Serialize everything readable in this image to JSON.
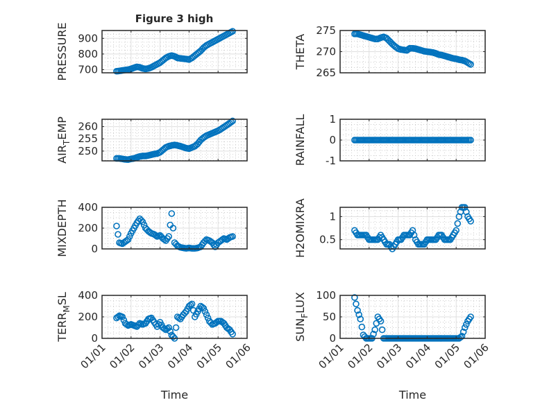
{
  "figure_title": "Figure 3 high",
  "chart_data": [
    {
      "type": "scatter",
      "ylabel": "PRESSURE",
      "ylim": [
        680,
        950
      ],
      "yticks": [
        700,
        800,
        900
      ],
      "series": "pressure"
    },
    {
      "type": "scatter",
      "ylabel": "THETA",
      "ylim": [
        265,
        275
      ],
      "yticks": [
        265,
        270,
        275
      ],
      "series": "theta"
    },
    {
      "type": "scatter",
      "ylabel": "AIR_TEMP",
      "ylim": [
        246,
        263
      ],
      "yticks": [
        250,
        255,
        260
      ],
      "series": "air_temp"
    },
    {
      "type": "scatter",
      "ylabel": "RAINFALL",
      "ylim": [
        -1,
        1
      ],
      "yticks": [
        -1,
        0,
        1
      ],
      "series": "rainfall"
    },
    {
      "type": "scatter",
      "ylabel": "MIXDEPTH",
      "ylim": [
        0,
        400
      ],
      "yticks": [
        0,
        200,
        400
      ],
      "series": "mixdepth"
    },
    {
      "type": "scatter",
      "ylabel": "H2OMIXRA",
      "ylim": [
        0.3,
        1.2
      ],
      "yticks": [
        0.5,
        1
      ],
      "series": "h2omixra"
    },
    {
      "type": "scatter",
      "ylabel": "TERR_MSL",
      "ylim": [
        0,
        400
      ],
      "yticks": [
        0,
        200,
        400
      ],
      "series": "terr_msl",
      "xlabel": "Time"
    },
    {
      "type": "scatter",
      "ylabel": "SUN_FLUX",
      "ylim": [
        0,
        100
      ],
      "yticks": [
        0,
        50,
        100
      ],
      "series": "sun_flux",
      "xlabel": "Time"
    }
  ],
  "x_axis": {
    "xlim": [
      0,
      5
    ],
    "xtick_labels": [
      "01/01",
      "01/02",
      "01/03",
      "01/04",
      "01/05",
      "01/06"
    ],
    "unit": "days"
  },
  "x": [
    0.5,
    0.6,
    0.7,
    0.8,
    0.9,
    1.0,
    1.1,
    1.2,
    1.3,
    1.4,
    1.5,
    1.6,
    1.7,
    1.8,
    1.9,
    2.0,
    2.1,
    2.2,
    2.3,
    2.4,
    2.5,
    2.6,
    2.7,
    2.8,
    2.9,
    3.0,
    3.1,
    3.2,
    3.3,
    3.4,
    3.5,
    3.6,
    3.7,
    3.8,
    3.9,
    4.0,
    4.1,
    4.2,
    4.3,
    4.4,
    4.5
  ],
  "data": {
    "pressure": [
      690,
      692,
      695,
      698,
      700,
      705,
      712,
      718,
      715,
      708,
      705,
      708,
      715,
      725,
      735,
      745,
      760,
      775,
      785,
      790,
      785,
      775,
      772,
      770,
      768,
      765,
      775,
      790,
      805,
      820,
      840,
      855,
      865,
      875,
      885,
      895,
      905,
      915,
      925,
      935,
      945
    ],
    "theta": [
      274.2,
      274.2,
      274,
      273.8,
      273.6,
      273.4,
      273.2,
      273,
      273,
      273.3,
      273.5,
      273.2,
      272.5,
      271.8,
      271.2,
      270.7,
      270.5,
      270.4,
      270.3,
      270.8,
      270.8,
      270.7,
      270.5,
      270.3,
      270.1,
      270,
      269.9,
      269.8,
      269.6,
      269.3,
      269.2,
      269,
      268.8,
      268.6,
      268.4,
      268.3,
      268.1,
      268,
      267.8,
      267.4,
      267
    ],
    "air_temp": [
      247,
      247,
      246.8,
      246.6,
      246.5,
      246.8,
      247,
      247.4,
      247.8,
      248,
      248,
      248.2,
      248.5,
      248.8,
      249,
      249.5,
      250.5,
      251.5,
      252,
      252.3,
      252.5,
      252.3,
      252,
      251.6,
      251.2,
      251,
      251.5,
      252,
      253,
      254.5,
      255.5,
      256.3,
      256.8,
      257.3,
      257.8,
      258.3,
      259,
      259.8,
      260.6,
      261.4,
      262.3
    ],
    "rainfall": [
      0,
      0,
      0,
      0,
      0,
      0,
      0,
      0,
      0,
      0,
      0,
      0,
      0,
      0,
      0,
      0,
      0,
      0,
      0,
      0,
      0,
      0,
      0,
      0,
      0,
      0,
      0,
      0,
      0,
      0,
      0,
      0,
      0,
      0,
      0,
      0,
      0,
      0,
      0,
      0,
      0
    ],
    "mixdepth": [
      220,
      60,
      50,
      70,
      90,
      150,
      200,
      250,
      290,
      260,
      200,
      170,
      150,
      140,
      120,
      130,
      100,
      80,
      120,
      340,
      60,
      30,
      15,
      10,
      5,
      10,
      5,
      5,
      10,
      20,
      60,
      90,
      80,
      60,
      20,
      60,
      80,
      100,
      90,
      110,
      120
    ],
    "h2omixra": [
      0.7,
      0.6,
      0.6,
      0.6,
      0.6,
      0.5,
      0.5,
      0.5,
      0.5,
      0.6,
      0.5,
      0.4,
      0.4,
      0.3,
      0.4,
      0.5,
      0.5,
      0.6,
      0.6,
      0.6,
      0.7,
      0.5,
      0.4,
      0.4,
      0.4,
      0.5,
      0.5,
      0.5,
      0.5,
      0.6,
      0.6,
      0.5,
      0.5,
      0.5,
      0.6,
      0.7,
      1.0,
      1.2,
      1.2,
      1.0,
      0.9
    ],
    "terr_msl": [
      190,
      210,
      200,
      140,
      120,
      130,
      120,
      110,
      140,
      130,
      140,
      180,
      190,
      150,
      110,
      150,
      100,
      80,
      100,
      30,
      0,
      200,
      180,
      220,
      250,
      300,
      320,
      200,
      250,
      300,
      280,
      220,
      160,
      130,
      140,
      160,
      160,
      140,
      100,
      80,
      40
    ],
    "sun_flux": [
      95,
      65,
      45,
      8,
      0,
      0,
      0,
      20,
      50,
      40,
      0,
      0,
      0,
      0,
      0,
      0,
      0,
      0,
      0,
      0,
      0,
      0,
      0,
      0,
      0,
      0,
      0,
      0,
      0,
      0,
      0,
      0,
      0,
      0,
      0,
      0,
      0,
      5,
      25,
      40,
      50
    ]
  },
  "colors": {
    "marker": "#0072BD",
    "axis": "#262626",
    "grid": "#DFDFDF"
  }
}
